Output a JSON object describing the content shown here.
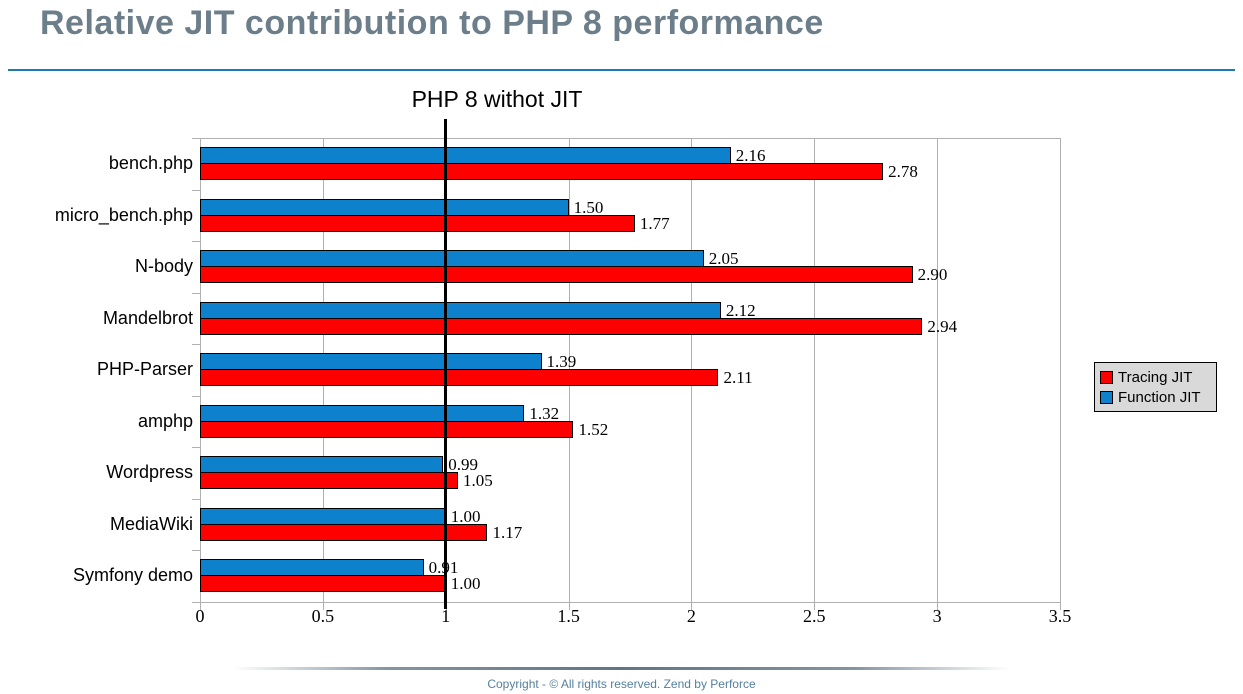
{
  "title": "Relative JIT contribution to PHP 8 performance",
  "annotation": "PHP 8 withot JIT",
  "footer": {
    "text": "Copyright - © All rights reserved. Zend by Perforce"
  },
  "legend": {
    "position": "right",
    "items": [
      {
        "label": "Tracing JIT",
        "color": "#fe0000"
      },
      {
        "label": "Function JIT",
        "color": "#0e81cc"
      }
    ]
  },
  "colors": {
    "tracing_jit": "#fe0000",
    "function_jit": "#0e81cc",
    "title_text": "#6d7e8b",
    "title_rule": "#1e79b5",
    "gridline": "#b0b0b0",
    "marker_line": "#000000",
    "legend_background": "#d9d9d9",
    "footer_text": "#54809e",
    "bar_border": "#000000"
  },
  "chart_data": {
    "type": "bar",
    "orientation": "horizontal",
    "title": "Relative JIT contribution to PHP 8 performance",
    "xlabel": "",
    "ylabel": "",
    "grid": true,
    "xlim": [
      0,
      3.5
    ],
    "xticks": [
      0,
      0.5,
      1,
      1.5,
      2,
      2.5,
      3,
      3.5
    ],
    "xtick_labels": [
      "0",
      "0.5",
      "1",
      "1.5",
      "2",
      "2.5",
      "3",
      "3.5"
    ],
    "categories": [
      "bench.php",
      "micro_bench.php",
      "N-body",
      "Mandelbrot",
      "PHP-Parser",
      "amphp",
      "Wordpress",
      "MediaWiki",
      "Symfony demo"
    ],
    "series": [
      {
        "name": "Function JIT",
        "color": "#0e81cc",
        "position": "top",
        "values": [
          2.16,
          1.5,
          2.05,
          2.12,
          1.39,
          1.32,
          0.99,
          1.0,
          0.91
        ]
      },
      {
        "name": "Tracing JIT",
        "color": "#fe0000",
        "position": "bottom",
        "values": [
          2.78,
          1.77,
          2.9,
          2.94,
          2.11,
          1.52,
          1.05,
          1.17,
          1.0
        ]
      }
    ],
    "value_labels_decimals": 2,
    "annotations": [
      {
        "text": "PHP 8 withot JIT",
        "x": 1
      }
    ],
    "marker_x": 1
  }
}
